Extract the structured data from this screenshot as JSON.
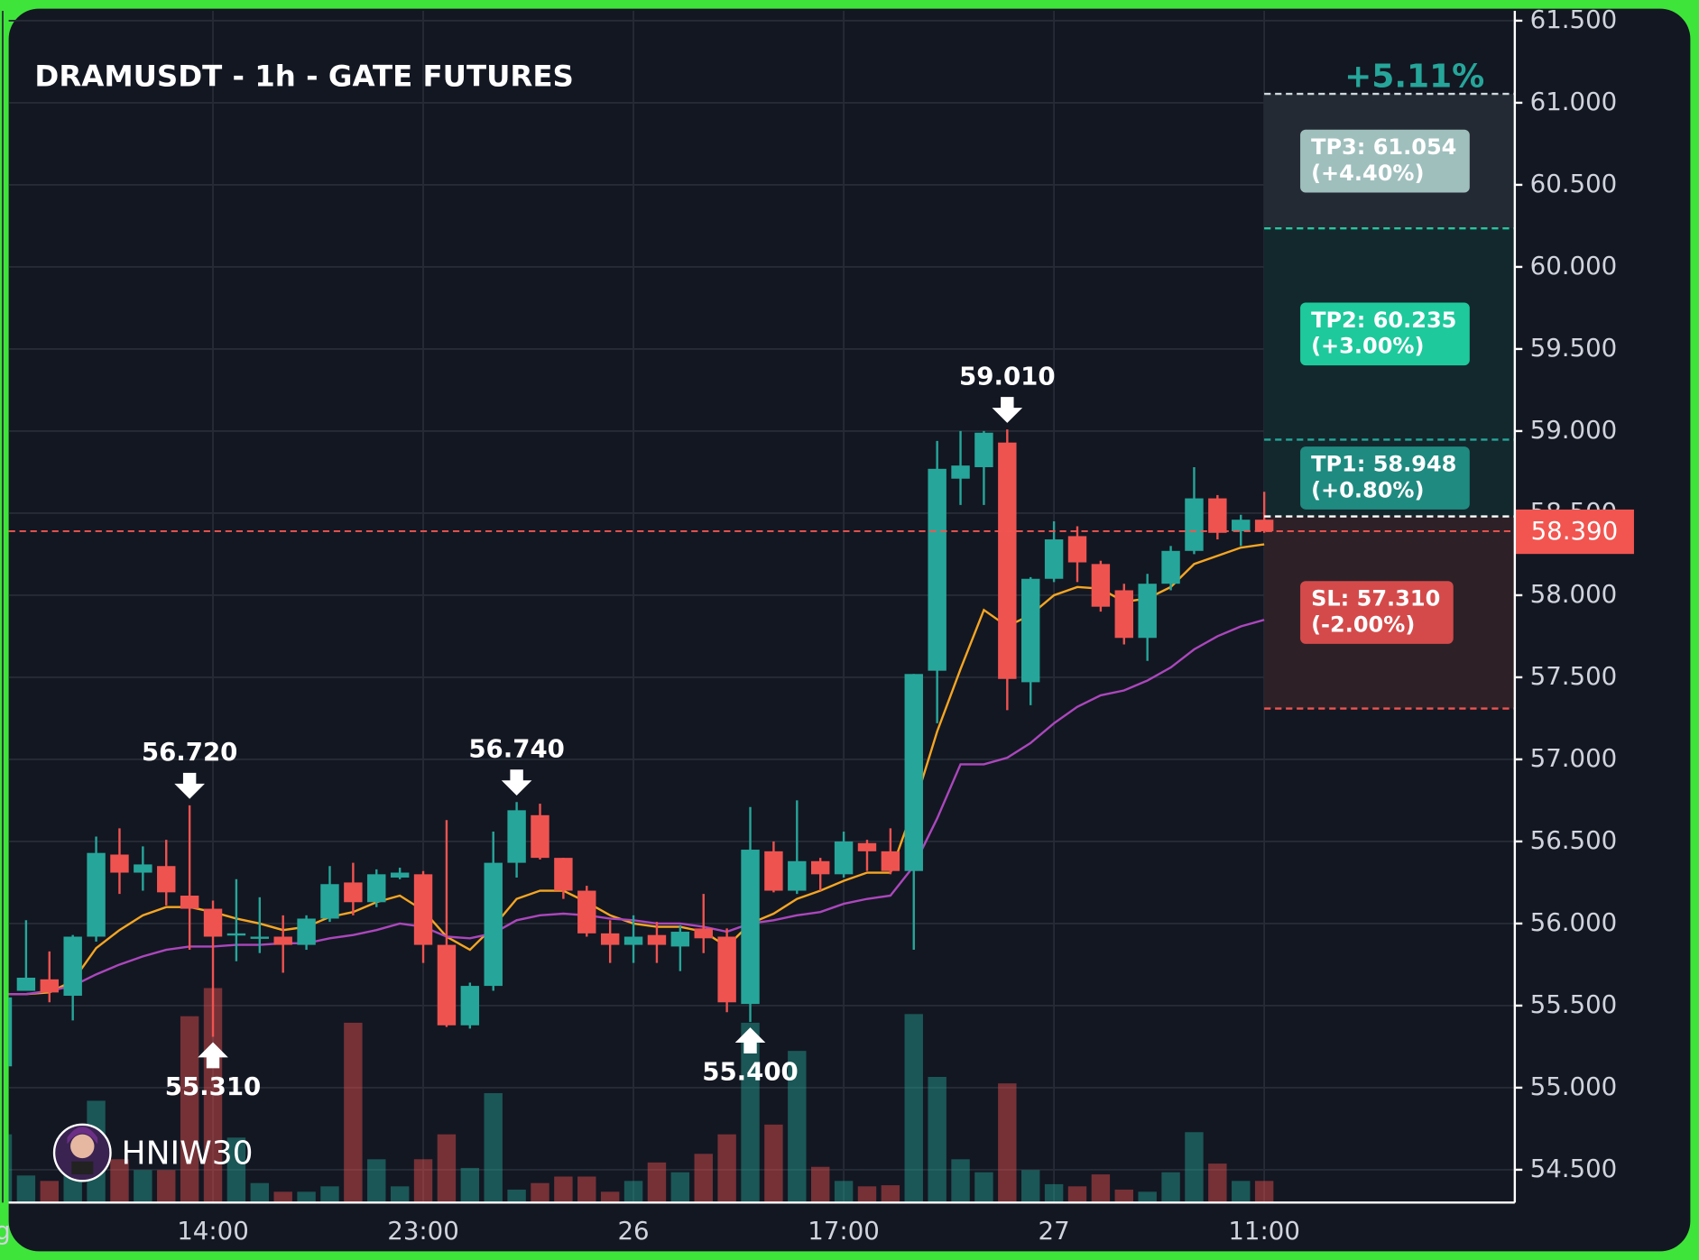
{
  "chart_data": {
    "type": "candlestick",
    "title": "DRAMUSDT - 1h - GATE FUTURES",
    "summary": "+5.11%",
    "watermark": "HNIW30",
    "categories": [
      "g",
      null,
      null,
      null,
      null,
      null,
      null,
      null,
      null,
      "14:00",
      null,
      null,
      null,
      null,
      null,
      null,
      null,
      null,
      "23:00",
      null,
      null,
      null,
      null,
      null,
      null,
      null,
      null,
      "26",
      null,
      null,
      null,
      null,
      null,
      null,
      null,
      null,
      "17:00",
      null,
      null,
      null,
      null,
      null,
      null,
      null,
      null,
      "27",
      null,
      null,
      null,
      null,
      null,
      null,
      null,
      null,
      "11:00"
    ],
    "open": [
      55.13,
      55.59,
      55.66,
      55.56,
      55.92,
      56.42,
      56.31,
      56.35,
      56.17,
      56.09,
      55.93,
      55.91,
      55.92,
      55.87,
      56.03,
      56.25,
      56.13,
      56.28,
      56.3,
      55.87,
      55.38,
      55.62,
      56.37,
      56.66,
      56.4,
      56.2,
      55.94,
      55.87,
      55.93,
      55.86,
      55.97,
      55.92,
      55.51,
      56.44,
      56.2,
      56.38,
      56.3,
      56.49,
      56.44,
      56.32,
      57.54,
      58.71,
      58.78,
      58.93,
      57.47,
      58.1,
      58.36,
      58.19,
      58.03,
      57.74,
      58.07,
      58.27,
      58.59,
      58.39,
      58.46
    ],
    "high": [
      55.57,
      56.02,
      55.83,
      55.93,
      56.53,
      56.58,
      56.47,
      56.51,
      56.72,
      56.14,
      56.27,
      56.16,
      56.05,
      56.05,
      56.35,
      56.37,
      56.33,
      56.34,
      56.32,
      56.63,
      55.64,
      56.56,
      56.74,
      56.73,
      56.4,
      56.23,
      56.02,
      56.05,
      56.01,
      55.99,
      56.18,
      55.97,
      56.71,
      56.5,
      56.75,
      56.4,
      56.56,
      56.51,
      56.58,
      57.52,
      58.94,
      59.0,
      59.0,
      59.01,
      58.11,
      58.45,
      58.42,
      58.21,
      58.07,
      58.13,
      58.3,
      58.78,
      58.61,
      58.49,
      58.63
    ],
    "low": [
      55.12,
      55.59,
      55.52,
      55.41,
      55.89,
      56.18,
      56.2,
      56.11,
      55.84,
      55.31,
      55.77,
      55.82,
      55.7,
      55.84,
      56.01,
      56.05,
      56.1,
      56.27,
      55.76,
      55.37,
      55.36,
      55.59,
      56.28,
      56.39,
      56.15,
      55.92,
      55.76,
      55.76,
      55.76,
      55.71,
      55.82,
      55.46,
      55.4,
      56.19,
      56.18,
      56.2,
      56.28,
      56.32,
      56.3,
      55.84,
      57.22,
      58.55,
      58.55,
      57.3,
      57.33,
      58.08,
      58.08,
      57.9,
      57.7,
      57.6,
      58.03,
      58.25,
      58.34,
      58.3,
      58.38
    ],
    "close": [
      55.55,
      55.67,
      55.58,
      55.92,
      56.43,
      56.31,
      56.36,
      56.19,
      56.09,
      55.92,
      55.94,
      55.92,
      55.87,
      56.03,
      56.24,
      56.13,
      56.3,
      56.31,
      55.87,
      55.38,
      55.62,
      56.37,
      56.69,
      56.4,
      56.2,
      55.94,
      55.87,
      55.92,
      55.87,
      55.95,
      55.91,
      55.52,
      56.45,
      56.2,
      56.38,
      56.3,
      56.5,
      56.44,
      56.32,
      57.52,
      58.77,
      58.79,
      58.99,
      57.49,
      58.1,
      58.34,
      58.2,
      57.93,
      57.74,
      58.07,
      58.27,
      58.59,
      58.38,
      58.46,
      58.39
    ],
    "volume": [
      63,
      25,
      20,
      30,
      94,
      40,
      30,
      30,
      172,
      198,
      60,
      18,
      10,
      10,
      15,
      166,
      40,
      15,
      40,
      63,
      32,
      101,
      12,
      18,
      24,
      24,
      10,
      20,
      37,
      28,
      45,
      63,
      166,
      72,
      140,
      33,
      20,
      15,
      16,
      174,
      116,
      40,
      28,
      110,
      30,
      17,
      15,
      26,
      12,
      10,
      28,
      65,
      36,
      20,
      20
    ],
    "moving_averages": [
      {
        "color": "#f5a623",
        "values": [
          55.57,
          55.57,
          55.58,
          55.65,
          55.85,
          55.96,
          56.05,
          56.1,
          56.1,
          56.07,
          56.03,
          56.0,
          55.96,
          55.98,
          56.04,
          56.07,
          56.13,
          56.17,
          56.08,
          55.92,
          55.84,
          55.98,
          56.15,
          56.2,
          56.2,
          56.13,
          56.05,
          56.0,
          55.98,
          55.98,
          55.95,
          55.86,
          56.0,
          56.06,
          56.15,
          56.2,
          56.26,
          56.31,
          56.31,
          56.71,
          57.17,
          57.55,
          57.91,
          57.81,
          57.88,
          58.0,
          58.05,
          58.04,
          57.96,
          57.98,
          58.05,
          58.19,
          58.24,
          58.29,
          58.31
        ]
      },
      {
        "color": "#ab47bc",
        "values": [
          55.57,
          55.57,
          55.59,
          55.62,
          55.69,
          55.75,
          55.8,
          55.84,
          55.86,
          55.86,
          55.87,
          55.87,
          55.88,
          55.88,
          55.91,
          55.93,
          55.96,
          56.0,
          55.98,
          55.92,
          55.91,
          55.94,
          56.02,
          56.05,
          56.06,
          56.05,
          56.03,
          56.02,
          56.0,
          56.0,
          55.98,
          55.95,
          56.0,
          56.02,
          56.05,
          56.07,
          56.12,
          56.15,
          56.17,
          56.35,
          56.64,
          56.97,
          56.97,
          57.01,
          57.1,
          57.22,
          57.32,
          57.39,
          57.42,
          57.48,
          57.56,
          57.67,
          57.75,
          57.81,
          57.85
        ]
      }
    ],
    "colors": {
      "up": "#26a69a",
      "down": "#ef5350"
    },
    "ylim": [
      54.3,
      61.56
    ],
    "yticks": [
      {
        "value": 54.5,
        "label": "54.500"
      },
      {
        "value": 55,
        "label": "55.000"
      },
      {
        "value": 55.5,
        "label": "55.500"
      },
      {
        "value": 56,
        "label": "56.000"
      },
      {
        "value": 56.5,
        "label": "56.500"
      },
      {
        "value": 57,
        "label": "57.000"
      },
      {
        "value": 57.5,
        "label": "57.500"
      },
      {
        "value": 58,
        "label": "58.000"
      },
      {
        "value": 58.5,
        "label": "58.500"
      },
      {
        "value": 59,
        "label": "59.000"
      },
      {
        "value": 59.5,
        "label": "59.500"
      },
      {
        "value": 60,
        "label": "60.000"
      },
      {
        "value": 60.5,
        "label": "60.500"
      },
      {
        "value": 61,
        "label": "61.000"
      },
      {
        "value": 61.5,
        "label": "61.500"
      }
    ],
    "grid": true,
    "last_price": {
      "value": 58.39,
      "label": "58.390",
      "color": "#f25550"
    },
    "annotations": [
      {
        "index": 8,
        "value": 56.72,
        "label": "56.720",
        "kind": "high"
      },
      {
        "index": 22,
        "value": 56.74,
        "label": "56.740",
        "kind": "high"
      },
      {
        "index": 43,
        "value": 59.01,
        "label": "59.010",
        "kind": "high"
      },
      {
        "index": 9,
        "value": 55.31,
        "label": "55.310",
        "kind": "low"
      },
      {
        "index": 32,
        "value": 55.4,
        "label": "55.400",
        "kind": "low"
      }
    ],
    "levels": [
      {
        "value": 61.054,
        "label": "TP3: 61.054",
        "pct": "(+4.40%)",
        "line": "#cfd8dc",
        "zone": "#242a33",
        "box": "#9fbfbd"
      },
      {
        "value": 60.235,
        "label": "TP2: 60.235",
        "pct": "(+3.00%)",
        "line": "#26c6a0",
        "zone": "#13282d",
        "box": "#1ec99c"
      },
      {
        "value": 58.948,
        "label": "TP1: 58.948",
        "pct": "(+0.80%)",
        "line": "#26a69a",
        "zone": "#13282d",
        "box": "#1f8a80"
      },
      {
        "value": 58.48,
        "kind": "entry",
        "line": "#ffffff"
      },
      {
        "value": 57.31,
        "label": "SL: 57.310",
        "pct": "(-2.00%)",
        "line": "#ef5350",
        "zone": "#2d2127",
        "box": "#d44a4a"
      }
    ]
  }
}
